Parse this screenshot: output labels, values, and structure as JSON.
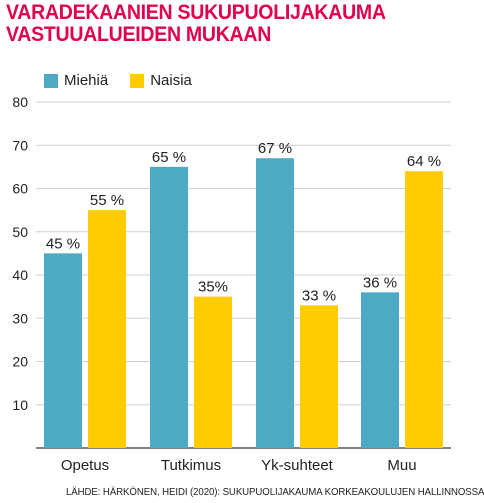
{
  "title": "VARADEKAANIEN SUKUPUOLIJAKAUMA VASTUUALUEIDEN MUKAAN",
  "source": "LÄHDE: HÄRKÖNEN, HEIDI (2020): SUKUPUOLIJAKAUMA KORKEAKOULUJEN HALLINNOSSA",
  "colors": {
    "title": "#e0004d",
    "miehia": "#4cabc2",
    "naisia": "#ffcc00",
    "grid": "#cfcfcf"
  },
  "chart_data": {
    "type": "bar",
    "title": "VARADEKAANIEN SUKUPUOLIJAKAUMA VASTUUALUEIDEN MUKAAN",
    "categories": [
      "Opetus",
      "Tutkimus",
      "Yk-suhteet",
      "Muu"
    ],
    "series": [
      {
        "name": "Miehiä",
        "values": [
          45,
          65,
          67,
          36
        ],
        "labels": [
          "45 %",
          "65 %",
          "67 %",
          "36 %"
        ]
      },
      {
        "name": "Naisia",
        "values": [
          55,
          35,
          33,
          64
        ],
        "labels": [
          "55 %",
          "35%",
          "33 %",
          "64 %"
        ]
      }
    ],
    "yticks": [
      10,
      20,
      30,
      40,
      50,
      60,
      70,
      80
    ],
    "ylim": [
      0,
      80
    ],
    "grid": true,
    "legend": "top-left",
    "xlabel": "",
    "ylabel": ""
  }
}
